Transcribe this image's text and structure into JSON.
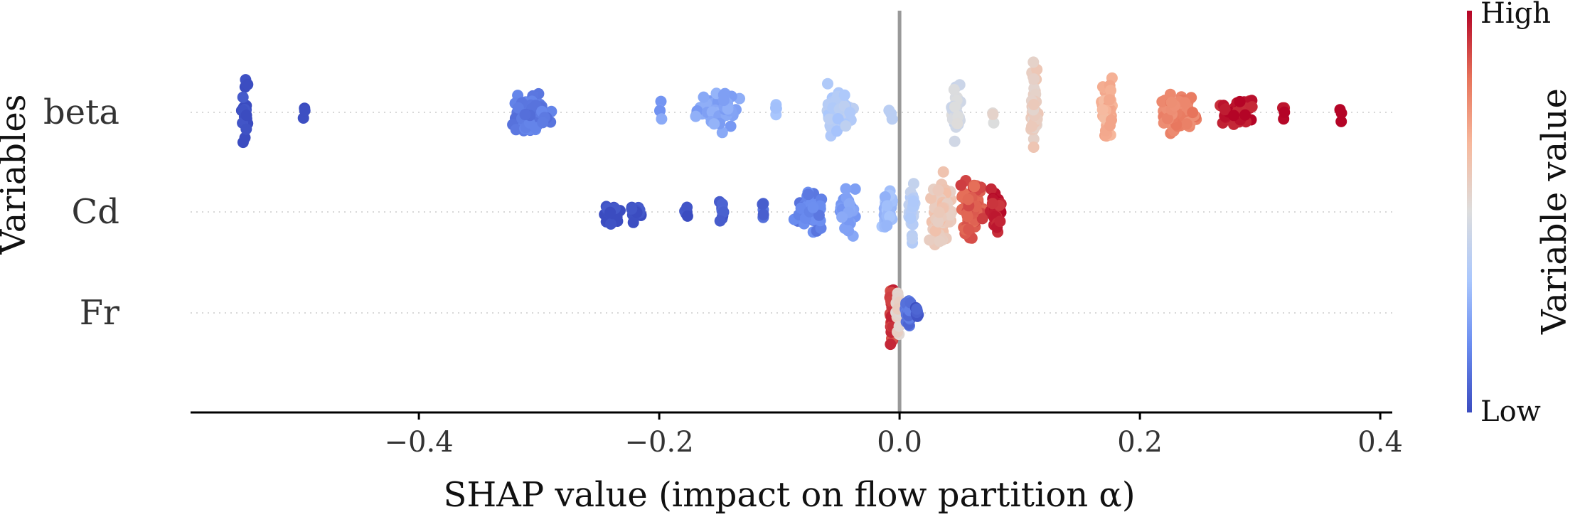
{
  "chart_data": {
    "type": "scatter",
    "subtype": "beeswarm",
    "title": "",
    "xlabel": "SHAP value (impact on flow partition α)",
    "ylabel": "Variables",
    "xlim": [
      -0.59,
      0.41
    ],
    "x_ticks": [
      -0.4,
      -0.2,
      0.0,
      0.2,
      0.4
    ],
    "x_tick_labels": [
      "−0.4",
      "−0.2",
      "0.0",
      "0.2",
      "0.4"
    ],
    "categories": [
      "beta",
      "Cd",
      "Fr"
    ],
    "zero_line": 0.0,
    "grid": false,
    "colorbar": {
      "label": "Variable value",
      "high_label": "High",
      "low_label": "Low",
      "colormap": [
        "#3b4cc0",
        "#6b8df0",
        "#aac7fd",
        "#dddddd",
        "#f7b89c",
        "#e7745b",
        "#b40426"
      ]
    },
    "series": [
      {
        "category": "beta",
        "clusters": [
          {
            "x": -0.545,
            "spread": 0.004,
            "count": 22,
            "value": 0.0,
            "height": 0.9
          },
          {
            "x": -0.495,
            "spread": 0.0015,
            "count": 3,
            "value": 0.02,
            "height": 0.25
          },
          {
            "x": -0.305,
            "spread": 0.022,
            "count": 70,
            "value": 0.12,
            "height": 0.55
          },
          {
            "x": -0.2,
            "spread": 0.003,
            "count": 4,
            "value": 0.22,
            "height": 0.3
          },
          {
            "x": -0.15,
            "spread": 0.022,
            "count": 55,
            "value": 0.24,
            "height": 0.5
          },
          {
            "x": -0.103,
            "spread": 0.002,
            "count": 4,
            "value": 0.3,
            "height": 0.3
          },
          {
            "x": -0.05,
            "spread": 0.018,
            "count": 50,
            "value": 0.36,
            "height": 0.7
          },
          {
            "x": -0.007,
            "spread": 0.002,
            "count": 3,
            "value": 0.4,
            "height": 0.25
          },
          {
            "x": 0.047,
            "spread": 0.006,
            "count": 30,
            "value": 0.47,
            "height": 0.75
          },
          {
            "x": 0.078,
            "spread": 0.002,
            "count": 3,
            "value": 0.53,
            "height": 0.25
          },
          {
            "x": 0.112,
            "spread": 0.004,
            "count": 45,
            "value": 0.57,
            "height": 1.4
          },
          {
            "x": 0.172,
            "spread": 0.007,
            "count": 60,
            "value": 0.68,
            "height": 0.85
          },
          {
            "x": 0.23,
            "spread": 0.022,
            "count": 90,
            "value": 0.8,
            "height": 0.55
          },
          {
            "x": 0.28,
            "spread": 0.022,
            "count": 50,
            "value": 0.97,
            "height": 0.35
          },
          {
            "x": 0.32,
            "spread": 0.002,
            "count": 4,
            "value": 0.99,
            "height": 0.25
          },
          {
            "x": 0.367,
            "spread": 0.001,
            "count": 3,
            "value": 1.0,
            "height": 0.3
          }
        ]
      },
      {
        "category": "Cd",
        "clusters": [
          {
            "x": -0.24,
            "spread": 0.01,
            "count": 20,
            "value": 0.0,
            "height": 0.3
          },
          {
            "x": -0.22,
            "spread": 0.01,
            "count": 12,
            "value": 0.02,
            "height": 0.25
          },
          {
            "x": -0.177,
            "spread": 0.003,
            "count": 5,
            "value": 0.03,
            "height": 0.3
          },
          {
            "x": -0.148,
            "spread": 0.004,
            "count": 10,
            "value": 0.05,
            "height": 0.35
          },
          {
            "x": -0.113,
            "spread": 0.002,
            "count": 5,
            "value": 0.08,
            "height": 0.3
          },
          {
            "x": -0.075,
            "spread": 0.015,
            "count": 45,
            "value": 0.14,
            "height": 0.5
          },
          {
            "x": -0.043,
            "spread": 0.01,
            "count": 40,
            "value": 0.22,
            "height": 0.55
          },
          {
            "x": -0.01,
            "spread": 0.007,
            "count": 40,
            "value": 0.3,
            "height": 0.5
          },
          {
            "x": 0.01,
            "spread": 0.004,
            "count": 30,
            "value": 0.38,
            "height": 0.75
          },
          {
            "x": 0.035,
            "spread": 0.012,
            "count": 80,
            "value": 0.6,
            "height": 0.9
          },
          {
            "x": 0.06,
            "spread": 0.012,
            "count": 90,
            "value": 0.88,
            "height": 0.85
          },
          {
            "x": 0.08,
            "spread": 0.006,
            "count": 40,
            "value": 0.96,
            "height": 0.6
          }
        ]
      },
      {
        "category": "Fr",
        "clusters": [
          {
            "x": -0.006,
            "spread": 0.003,
            "count": 45,
            "value": 0.92,
            "height": 0.7
          },
          {
            "x": -0.001,
            "spread": 0.003,
            "count": 25,
            "value": 0.55,
            "height": 0.6
          },
          {
            "x": 0.007,
            "spread": 0.004,
            "count": 35,
            "value": 0.1,
            "height": 0.45
          },
          {
            "x": 0.015,
            "spread": 0.002,
            "count": 8,
            "value": 0.04,
            "height": 0.2
          }
        ]
      }
    ]
  }
}
